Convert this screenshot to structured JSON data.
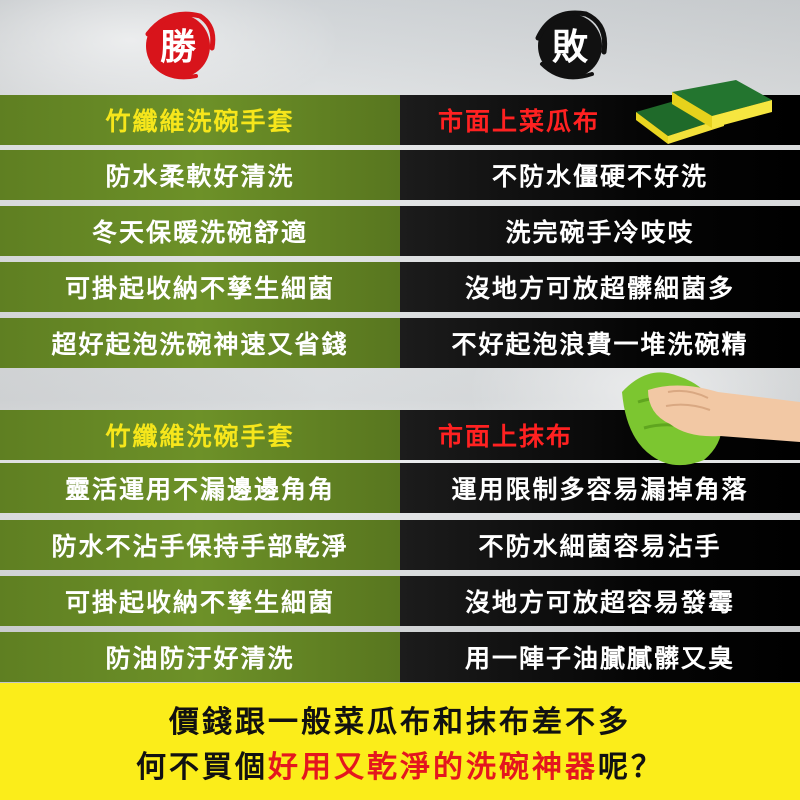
{
  "badges": {
    "win": "勝",
    "lose": "敗"
  },
  "section1": {
    "header_left": "竹纖維洗碗手套",
    "header_right": "市面上菜瓜布",
    "rows": [
      {
        "left": "防水柔軟好清洗",
        "right": "不防水僵硬不好洗"
      },
      {
        "left": "冬天保暖洗碗舒適",
        "right": "洗完碗手冷吱吱"
      },
      {
        "left": "可掛起收納不孳生細菌",
        "right": "沒地方可放超髒細菌多"
      },
      {
        "left": "超好起泡洗碗神速又省錢",
        "right": "不好起泡浪費一堆洗碗精"
      }
    ]
  },
  "section2": {
    "header_left": "竹纖維洗碗手套",
    "header_right": "市面上抹布",
    "rows": [
      {
        "left": "靈活運用不漏邊邊角角",
        "right": "運用限制多容易漏掉角落"
      },
      {
        "left": "防水不沾手保持手部乾淨",
        "right": "不防水細菌容易沾手"
      },
      {
        "left": "可掛起收納不孳生細菌",
        "right": "沒地方可放超容易發霉"
      },
      {
        "left": "防油防汙好清洗",
        "right": "用一陣子油膩膩髒又臭"
      }
    ]
  },
  "bottom": {
    "line1": "價錢跟一般菜瓜布和抹布差不多",
    "line2_prefix": "何不買個",
    "line2_highlight": "好用又乾淨的洗碗神器",
    "line2_suffix": "呢？"
  },
  "colors": {
    "green": "#6d9128",
    "black": "#000000",
    "header_left_text": "#f6e61b",
    "header_right_text": "#ff2121",
    "bottom_bg": "#fbed1a",
    "highlight": "#e4161e"
  }
}
